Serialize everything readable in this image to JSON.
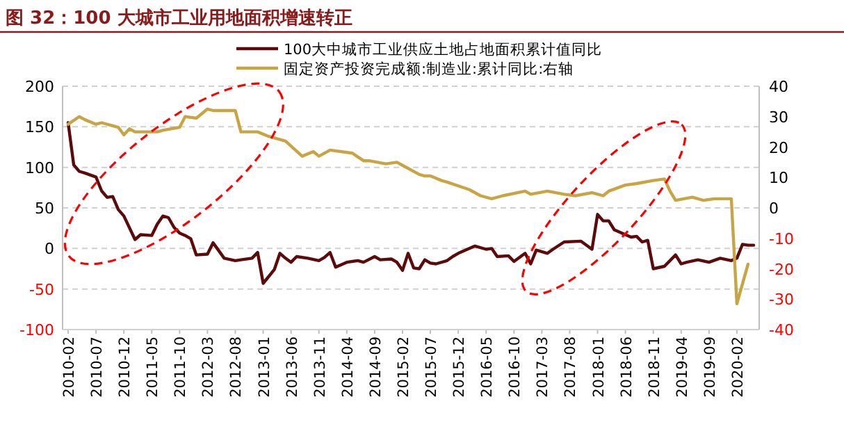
{
  "chart_data": {
    "type": "line",
    "title": "图 32：100 大城市工业用地面积增速转正",
    "xlim": [
      "2010-01",
      "2020-06"
    ],
    "xticks": [
      "2010-02",
      "2010-07",
      "2010-12",
      "2011-05",
      "2011-10",
      "2012-03",
      "2012-08",
      "2013-01",
      "2013-06",
      "2013-11",
      "2014-04",
      "2014-09",
      "2015-02",
      "2015-07",
      "2015-12",
      "2016-05",
      "2016-10",
      "2017-03",
      "2017-08",
      "2018-01",
      "2018-06",
      "2018-11",
      "2019-04",
      "2019-09",
      "2020-02"
    ],
    "ylim": [
      -100,
      200
    ],
    "yticks": [
      -100,
      -50,
      0,
      50,
      100,
      150,
      200
    ],
    "y2lim": [
      -40,
      40
    ],
    "y2ticks": [
      -40,
      -30,
      -20,
      -10,
      0,
      10,
      20,
      30,
      40
    ],
    "grid": "y",
    "legend": "top",
    "line_style": "solid",
    "marker": "none",
    "series": [
      {
        "name": "100大中城市工业供应土地占地面积累计值同比",
        "color": "#5c0a0a",
        "x": [
          "2010-02",
          "2010-03",
          "2010-04",
          "2010-05",
          "2010-07",
          "2010-08",
          "2010-09",
          "2010-10",
          "2010-11",
          "2010-12",
          "2011-02",
          "2011-03",
          "2011-05",
          "2011-06",
          "2011-07",
          "2011-08",
          "2011-09",
          "2011-10",
          "2011-11",
          "2011-12",
          "2012-01",
          "2012-03",
          "2012-04",
          "2012-06",
          "2012-08",
          "2012-09",
          "2012-11",
          "2012-12",
          "2013-01",
          "2013-03",
          "2013-04",
          "2013-05",
          "2013-06",
          "2013-07",
          "2013-09",
          "2013-11",
          "2013-12",
          "2014-01",
          "2014-02",
          "2014-04",
          "2014-06",
          "2014-07",
          "2014-09",
          "2014-10",
          "2014-12",
          "2015-01",
          "2015-02",
          "2015-03",
          "2015-04",
          "2015-05",
          "2015-06",
          "2015-07",
          "2015-08",
          "2015-10",
          "2015-11",
          "2015-12",
          "2016-02",
          "2016-03",
          "2016-05",
          "2016-06",
          "2016-07",
          "2016-09",
          "2016-10",
          "2016-12",
          "2017-01",
          "2017-02",
          "2017-04",
          "2017-05",
          "2017-07",
          "2017-10",
          "2017-12",
          "2018-01",
          "2018-02",
          "2018-03",
          "2018-04",
          "2018-06",
          "2018-07",
          "2018-08",
          "2018-09",
          "2018-10",
          "2018-11",
          "2019-01",
          "2019-03",
          "2019-04",
          "2019-05",
          "2019-07",
          "2019-09",
          "2019-11",
          "2020-01",
          "2020-02",
          "2020-03",
          "2020-04",
          "2020-05"
        ],
        "values": [
          155,
          103,
          95,
          93,
          88,
          71,
          63,
          64,
          48,
          40,
          11,
          17,
          16,
          30,
          40,
          38,
          26,
          19,
          16,
          12,
          -8,
          -7,
          7,
          -12,
          -15,
          -14,
          -12,
          -5,
          -43,
          -26,
          -6,
          -12,
          -17,
          -10,
          -12,
          -15,
          -11,
          -5,
          -23,
          -17,
          -15,
          -17,
          -10,
          -14,
          -13,
          -17,
          -27,
          -6,
          -24,
          -25,
          -14,
          -18,
          -19,
          -15,
          -10,
          -6,
          0,
          3,
          -1,
          0,
          -10,
          -9,
          -16,
          -6,
          -19,
          -2,
          -6,
          -1,
          8,
          9,
          -1,
          42,
          34,
          34,
          23,
          17,
          14,
          15,
          8,
          10,
          -25,
          -22,
          -8,
          -19,
          -17,
          -14,
          -17,
          -12,
          -15,
          -12,
          5,
          4,
          4
        ]
      },
      {
        "name": "固定资产投资完成额:制造业:累计同比:右轴",
        "color": "#c8a445",
        "axis": "y2",
        "x": [
          "2010-02",
          "2010-04",
          "2010-05",
          "2010-07",
          "2010-08",
          "2010-10",
          "2010-11",
          "2010-12",
          "2011-01",
          "2011-02",
          "2011-06",
          "2011-07",
          "2011-10",
          "2011-11",
          "2012-01",
          "2012-03",
          "2012-04",
          "2012-05",
          "2012-08",
          "2012-09",
          "2012-10",
          "2012-12",
          "2013-02",
          "2013-05",
          "2013-08",
          "2013-10",
          "2013-11",
          "2014-01",
          "2014-05",
          "2014-07",
          "2014-08",
          "2014-11",
          "2015-01",
          "2015-02",
          "2015-05",
          "2015-06",
          "2015-07",
          "2015-09",
          "2015-10",
          "2016-02",
          "2016-04",
          "2016-06",
          "2016-08",
          "2016-12",
          "2017-01",
          "2017-04",
          "2017-07",
          "2017-09",
          "2017-12",
          "2018-02",
          "2018-03",
          "2018-06",
          "2018-08",
          "2018-11",
          "2019-01",
          "2019-02",
          "2019-03",
          "2019-06",
          "2019-08",
          "2019-10",
          "2019-12",
          "2020-01",
          "2020-02",
          "2020-04"
        ],
        "values": [
          27.5,
          30,
          29,
          27.5,
          28,
          27,
          26.5,
          24,
          26,
          25,
          25,
          25.5,
          26.5,
          30,
          29.5,
          32.5,
          32,
          32,
          32,
          25,
          25,
          25,
          23.5,
          22,
          17,
          18.5,
          17,
          19,
          18,
          15.5,
          15.5,
          14.5,
          15,
          14,
          11,
          10.5,
          10.5,
          9,
          8.5,
          6,
          4,
          3,
          4,
          5.5,
          4.5,
          5.5,
          4.5,
          4,
          5,
          4,
          5.5,
          7.5,
          8,
          9,
          9.5,
          5.5,
          2.5,
          3.5,
          2.5,
          3,
          3,
          3,
          -31.5,
          -18.5
        ]
      }
    ]
  }
}
